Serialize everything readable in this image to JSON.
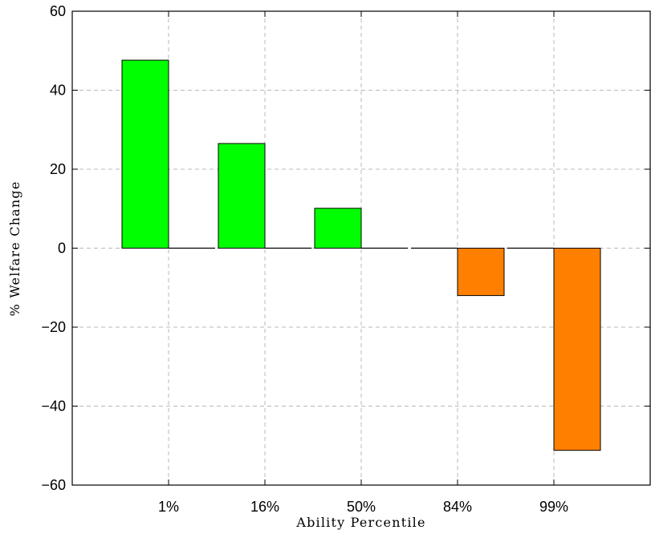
{
  "chart_data": {
    "type": "bar",
    "title": "",
    "xlabel": "Ability Percentile",
    "ylabel": "% Welfare Change",
    "categories": [
      "1%",
      "16%",
      "50%",
      "84%",
      "99%"
    ],
    "ylim": [
      -60,
      60
    ],
    "yticks": [
      "60",
      "40",
      "20",
      "0",
      "−20",
      "−40",
      "−60"
    ],
    "ytick_values": [
      60,
      40,
      20,
      0,
      -20,
      -40,
      -60
    ],
    "grid": true,
    "series": [
      {
        "values": [
          47.6,
          26.5,
          10.1,
          0,
          0
        ],
        "color": "#00ff00"
      },
      {
        "values": [
          0,
          0,
          0,
          -12.0,
          -51.2
        ],
        "color": "#ff8000"
      }
    ]
  }
}
